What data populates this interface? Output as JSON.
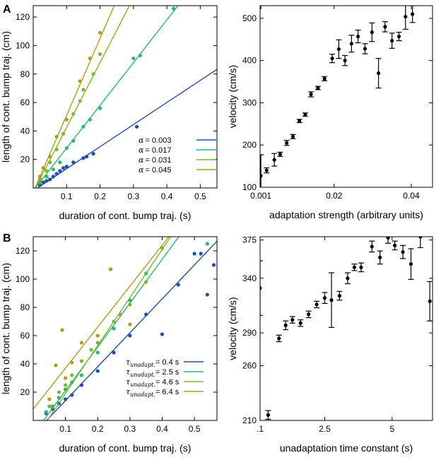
{
  "colors": {
    "blue": "#1f4fa8",
    "green": "#2bb673",
    "lightgreen": "#7ab929",
    "olive": "#b59a18",
    "black": "#000000"
  },
  "chart_data": [
    {
      "id": "A_left",
      "panel": "A",
      "type": "scatter",
      "xlabel": "duration of cont. bump traj. (s)",
      "ylabel": "length of cont. bump traj. (cm)",
      "xlim": [
        0,
        0.55
      ],
      "ylim": [
        0,
        128
      ],
      "xticks": [
        0.1,
        0.2,
        0.3,
        0.4,
        0.5
      ],
      "xtick_labels": [
        "0.1",
        "0.2",
        "0.3",
        "0.4",
        "0.5"
      ],
      "yticks": [
        20,
        40,
        60,
        80,
        100,
        120
      ],
      "ytick_labels": [
        "20",
        "40",
        "60",
        "80",
        "100",
        "120"
      ],
      "legend_position": "lower-right",
      "series": [
        {
          "name": "α = 0.003",
          "symbol": "α",
          "value": "= 0.003",
          "color": "#1f4fa8",
          "slope": 155,
          "intercept": -2,
          "points": [
            [
              0.02,
              2
            ],
            [
              0.03,
              4
            ],
            [
              0.04,
              5
            ],
            [
              0.05,
              6
            ],
            [
              0.06,
              8
            ],
            [
              0.07,
              10
            ],
            [
              0.08,
              12
            ],
            [
              0.09,
              14
            ],
            [
              0.1,
              15
            ],
            [
              0.12,
              18
            ],
            [
              0.15,
              21
            ],
            [
              0.16,
              22
            ],
            [
              0.18,
              24
            ],
            [
              0.31,
              43
            ]
          ]
        },
        {
          "name": "α = 0.017",
          "symbol": "α",
          "value": "= 0.017",
          "color": "#2bb673",
          "slope": 300,
          "intercept": -2,
          "points": [
            [
              0.02,
              4
            ],
            [
              0.04,
              8
            ],
            [
              0.06,
              13
            ],
            [
              0.08,
              18
            ],
            [
              0.1,
              28
            ],
            [
              0.12,
              33
            ],
            [
              0.15,
              43
            ],
            [
              0.17,
              48
            ],
            [
              0.2,
              56
            ],
            [
              0.3,
              91
            ],
            [
              0.32,
              93
            ],
            [
              0.42,
              126
            ]
          ]
        },
        {
          "name": "α = 0.031",
          "symbol": "α",
          "value": "= 0.031",
          "color": "#7ab929",
          "slope": 455,
          "intercept": -3,
          "points": [
            [
              0.02,
              6
            ],
            [
              0.04,
              12
            ],
            [
              0.05,
              18
            ],
            [
              0.07,
              27
            ],
            [
              0.09,
              38
            ],
            [
              0.12,
              52
            ],
            [
              0.14,
              61
            ],
            [
              0.15,
              69
            ],
            [
              0.18,
              80
            ],
            [
              0.2,
              94
            ]
          ]
        },
        {
          "name": "α = 0.045",
          "symbol": "α",
          "value": "= 0.045",
          "color": "#b59a18",
          "slope": 540,
          "intercept": -3,
          "points": [
            [
              0.02,
              8
            ],
            [
              0.03,
              14
            ],
            [
              0.05,
              22
            ],
            [
              0.07,
              36
            ],
            [
              0.1,
              48
            ],
            [
              0.14,
              75
            ],
            [
              0.17,
              91
            ],
            [
              0.2,
              109
            ]
          ]
        }
      ]
    },
    {
      "id": "A_right",
      "panel": "A",
      "type": "scatter",
      "xlabel": "adaptation strength (arbitrary units)",
      "ylabel": "velocity (cm/s)",
      "xlim": [
        0.0008,
        0.0455
      ],
      "ylim": [
        100,
        530
      ],
      "xticks": [
        0.001,
        0.02,
        0.04
      ],
      "xtick_labels": [
        "0.001",
        "0.02",
        "0.04"
      ],
      "yticks": [
        100,
        200,
        300,
        400,
        500
      ],
      "ytick_labels": [
        "100",
        "200",
        "300",
        "400",
        "500"
      ],
      "series": [
        {
          "name": "velocity",
          "color": "#000000",
          "points": [
            [
              0.001,
              127,
              50
            ],
            [
              0.0025,
              140,
              6
            ],
            [
              0.0045,
              165,
              15
            ],
            [
              0.006,
              178,
              5
            ],
            [
              0.0077,
              205,
              6
            ],
            [
              0.0093,
              220,
              5
            ],
            [
              0.011,
              257,
              4
            ],
            [
              0.0125,
              272,
              4
            ],
            [
              0.014,
              320,
              6
            ],
            [
              0.0158,
              335,
              4
            ],
            [
              0.0175,
              357,
              5
            ],
            [
              0.0195,
              405,
              10
            ],
            [
              0.0212,
              427,
              22
            ],
            [
              0.0228,
              400,
              12
            ],
            [
              0.0245,
              440,
              20
            ],
            [
              0.0262,
              457,
              15
            ],
            [
              0.028,
              428,
              12
            ],
            [
              0.0298,
              467,
              22
            ],
            [
              0.0315,
              370,
              35
            ],
            [
              0.0332,
              480,
              12
            ],
            [
              0.035,
              447,
              18
            ],
            [
              0.0368,
              457,
              10
            ],
            [
              0.0385,
              504,
              30
            ],
            [
              0.0403,
              510,
              20
            ]
          ]
        }
      ]
    },
    {
      "id": "B_left",
      "panel": "B",
      "type": "scatter",
      "xlabel": "duration of cont. bump traj. (s)",
      "ylabel": "length of cont. bump traj. (cm)",
      "xlim": [
        0,
        0.57
      ],
      "ylim": [
        0,
        130
      ],
      "xticks": [
        0.1,
        0.2,
        0.3,
        0.4,
        0.5
      ],
      "xtick_labels": [
        "0.1",
        "0.2",
        "0.3",
        "0.4",
        "0.5"
      ],
      "yticks": [
        20,
        40,
        60,
        80,
        100,
        120
      ],
      "ytick_labels": [
        "20",
        "40",
        "60",
        "80",
        "100",
        "120"
      ],
      "legend_position": "lower-right",
      "series": [
        {
          "name": "τunadapt.= 0.4 s",
          "symbol": "τ",
          "sub": "unadapt.",
          "value": "= 0.4 s",
          "color": "#1f4fa8",
          "slope": 240,
          "intercept": -10,
          "points": [
            [
              0.04,
              5
            ],
            [
              0.06,
              8
            ],
            [
              0.08,
              12
            ],
            [
              0.1,
              15
            ],
            [
              0.12,
              18
            ],
            [
              0.15,
              25
            ],
            [
              0.2,
              35
            ],
            [
              0.25,
              48
            ],
            [
              0.3,
              60
            ],
            [
              0.35,
              75
            ],
            [
              0.4,
              61
            ],
            [
              0.45,
              96
            ],
            [
              0.5,
              118
            ],
            [
              0.52,
              118
            ],
            [
              0.54,
              89
            ],
            [
              0.56,
              110
            ]
          ]
        },
        {
          "name": "τunadapt.= 2.5 s",
          "symbol": "τ",
          "sub": "unadapt.",
          "value": "= 2.5 s",
          "color": "#2bb673",
          "slope": 310,
          "intercept": -10,
          "points": [
            [
              0.04,
              6
            ],
            [
              0.06,
              10
            ],
            [
              0.08,
              16
            ],
            [
              0.1,
              22
            ],
            [
              0.12,
              27
            ],
            [
              0.15,
              32
            ],
            [
              0.2,
              48
            ],
            [
              0.25,
              65
            ],
            [
              0.3,
              85
            ],
            [
              0.35,
              104
            ],
            [
              0.54,
              125
            ]
          ]
        },
        {
          "name": "τunadapt.= 4.6 s",
          "symbol": "τ",
          "sub": "unadapt.",
          "value": "= 4.6 s",
          "color": "#7ab929",
          "slope": 340,
          "intercept": -15,
          "points": [
            [
              0.05,
              10
            ],
            [
              0.08,
              20
            ],
            [
              0.1,
              25
            ],
            [
              0.12,
              32
            ],
            [
              0.15,
              42
            ],
            [
              0.18,
              50
            ],
            [
              0.2,
              55
            ],
            [
              0.25,
              70
            ],
            [
              0.3,
              82
            ],
            [
              0.35,
              98
            ],
            [
              0.4,
              122
            ]
          ]
        },
        {
          "name": "τunadapt.= 6.4 s",
          "symbol": "τ",
          "sub": "unadapt.",
          "value": "= 6.4 s",
          "color": "#b59a18",
          "slope": 290,
          "intercept": 8,
          "points": [
            [
              0.05,
              15
            ],
            [
              0.07,
              39
            ],
            [
              0.09,
              64
            ],
            [
              0.1,
              30
            ],
            [
              0.12,
              41
            ],
            [
              0.15,
              55
            ],
            [
              0.2,
              60
            ],
            [
              0.24,
              107
            ],
            [
              0.27,
              75
            ],
            [
              0.3,
              68
            ]
          ]
        }
      ]
    },
    {
      "id": "B_right",
      "panel": "B",
      "type": "scatter",
      "xlabel": "unadaptation time constant (s)",
      "ylabel": "velocity (cm/s)",
      "xlim": [
        0.1,
        6.5
      ],
      "ylim": [
        210,
        378
      ],
      "xticks": [
        0.1,
        2.5,
        5
      ],
      "xtick_labels": [
        ".1",
        "2.5",
        "5"
      ],
      "yticks": [
        210,
        260,
        290,
        340,
        375
      ],
      "ytick_labels": [
        "210",
        "260",
        "290",
        "340",
        "375"
      ],
      "series": [
        {
          "name": "velocity",
          "color": "#000000",
          "points": [
            [
              0.1,
              331,
              25
            ],
            [
              0.4,
              215,
              4
            ],
            [
              0.8,
              285,
              3
            ],
            [
              1.05,
              297,
              4
            ],
            [
              1.3,
              302,
              3
            ],
            [
              1.6,
              299,
              3
            ],
            [
              1.9,
              307,
              3
            ],
            [
              2.2,
              316,
              3
            ],
            [
              2.5,
              322,
              5
            ],
            [
              2.75,
              320,
              25
            ],
            [
              3.05,
              324,
              4
            ],
            [
              3.35,
              340,
              5
            ],
            [
              3.6,
              350,
              3
            ],
            [
              3.85,
              350,
              4
            ],
            [
              4.25,
              369,
              5
            ],
            [
              4.55,
              359,
              6
            ],
            [
              4.85,
              377,
              5
            ],
            [
              5.1,
              370,
              4
            ],
            [
              5.4,
              364,
              6
            ],
            [
              5.7,
              353,
              14
            ],
            [
              6.05,
              378,
              10
            ],
            [
              6.4,
              319,
              18
            ]
          ]
        }
      ]
    }
  ],
  "panel_labels": {
    "a": "A",
    "b": "B"
  }
}
